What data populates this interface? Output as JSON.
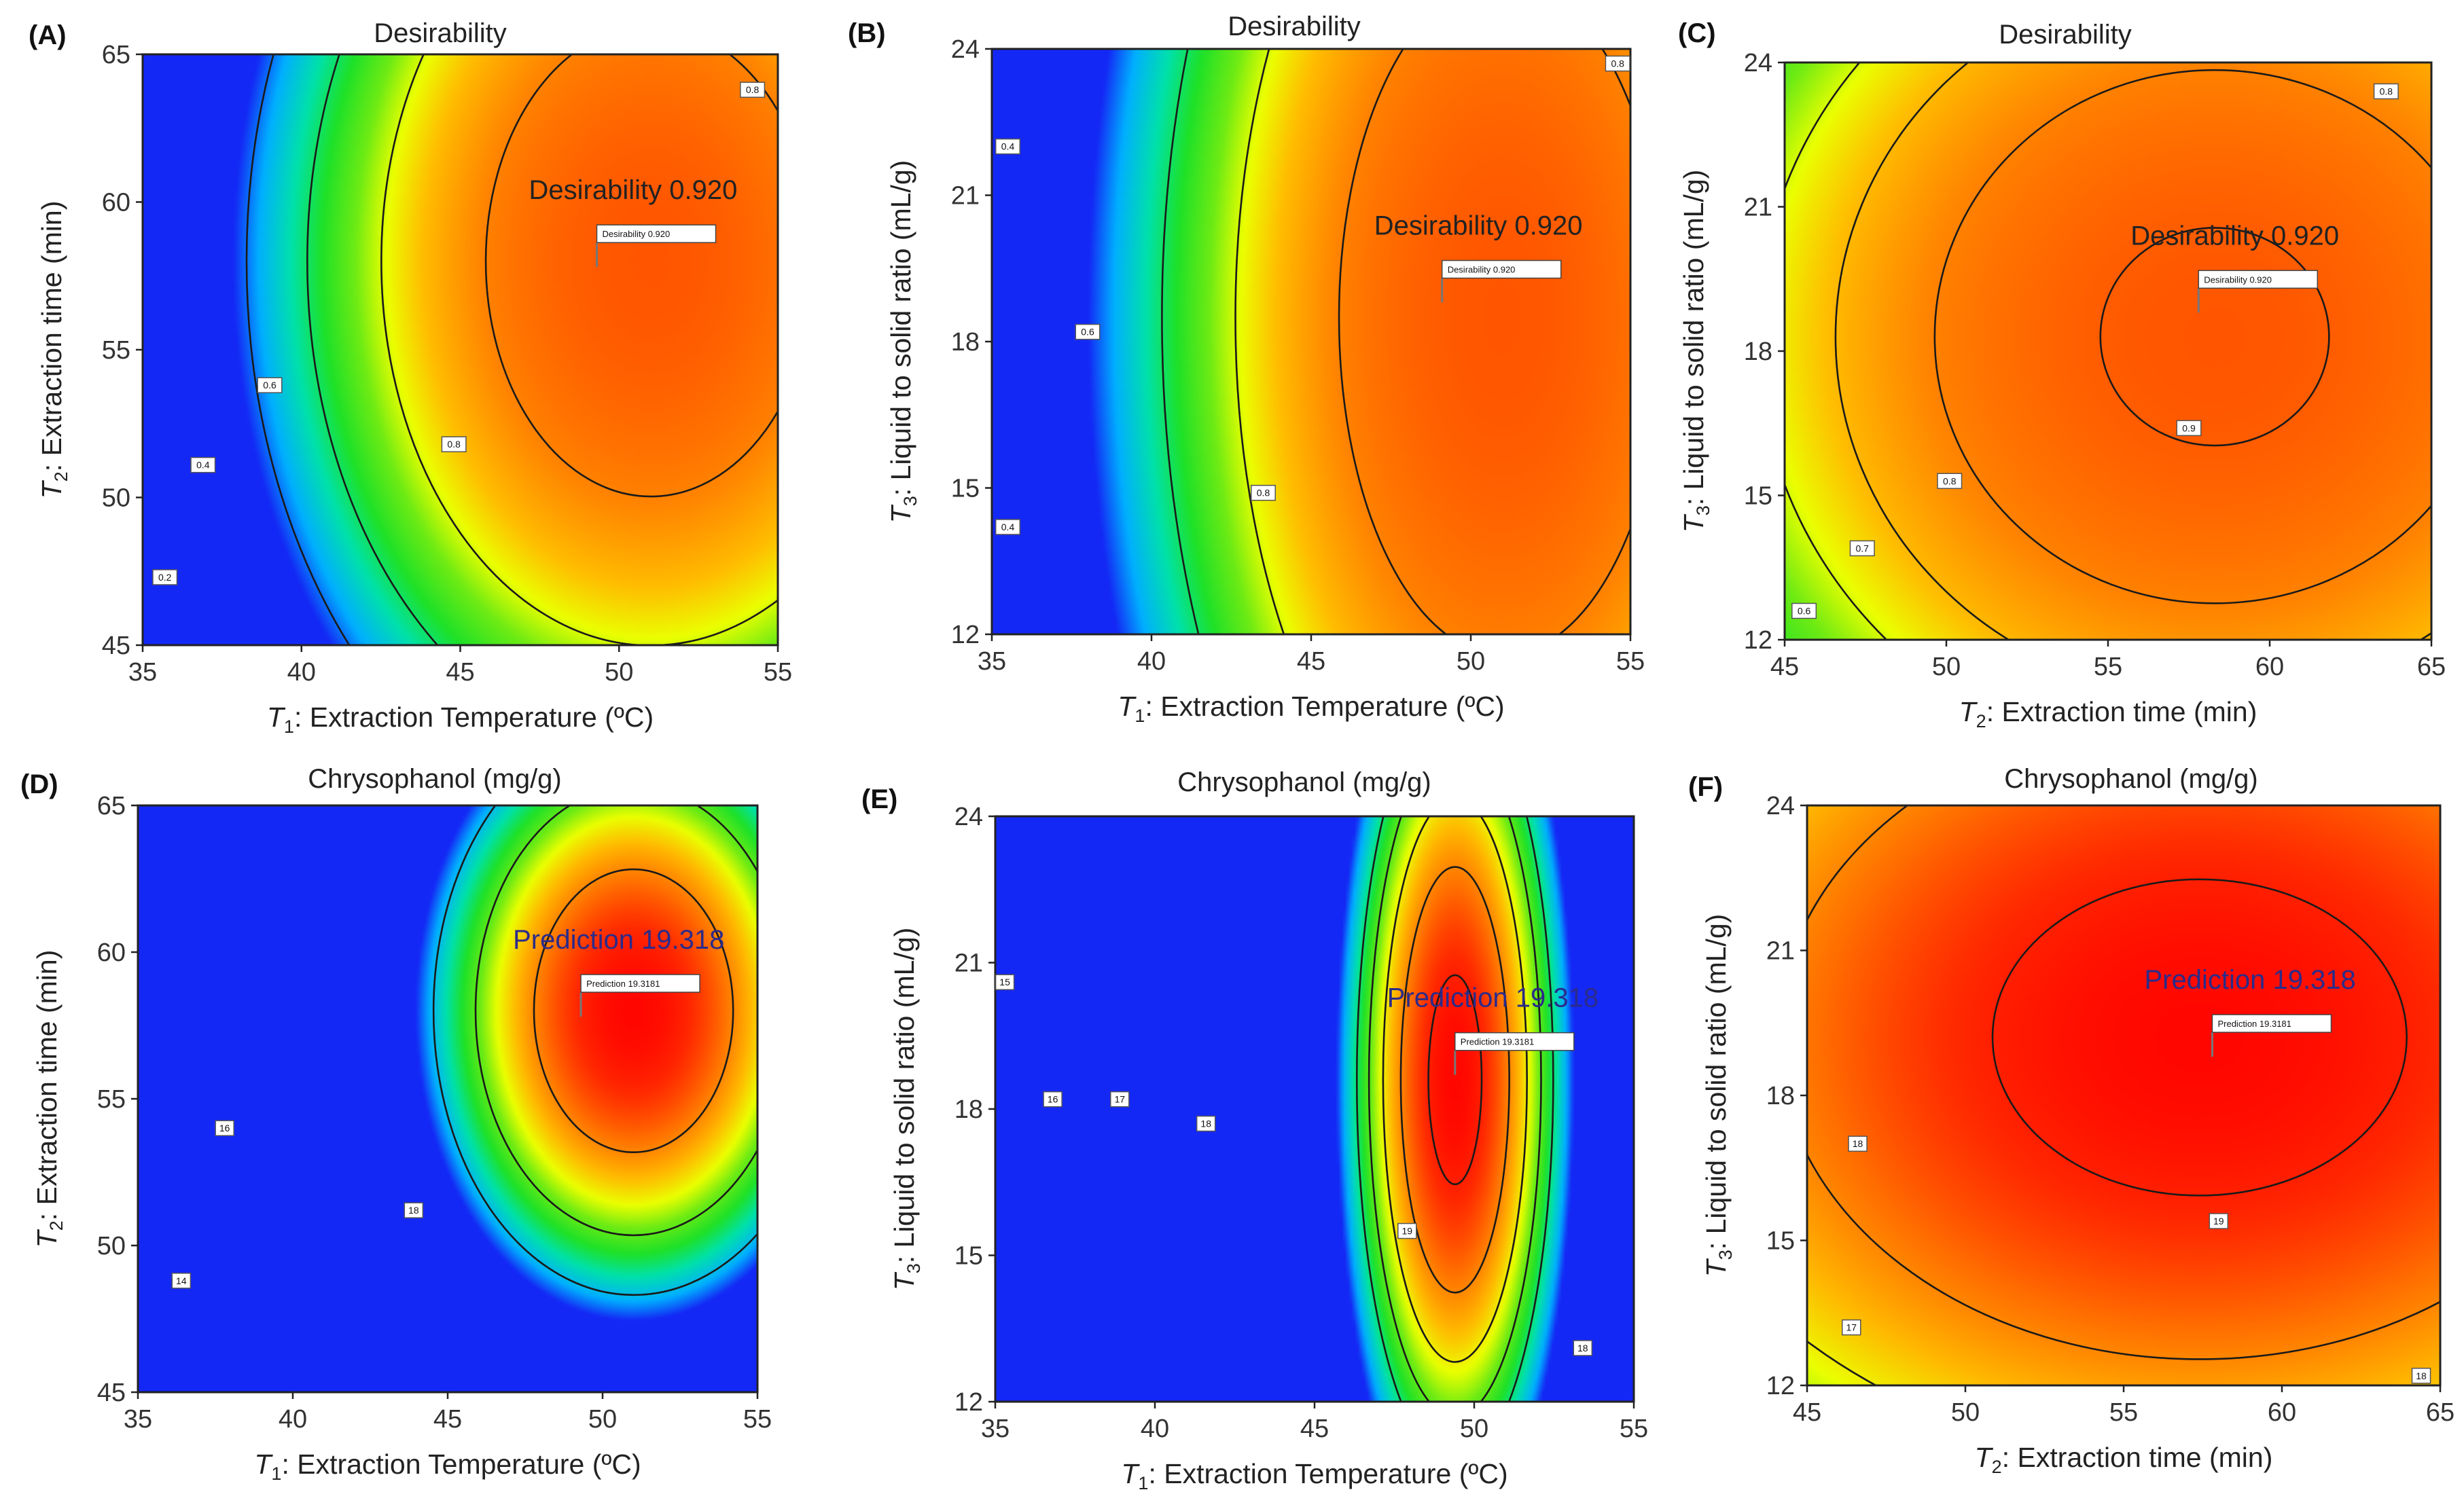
{
  "chart_data": [
    {
      "panel": "(A)",
      "type": "heatmap",
      "title": "Desirability",
      "xlabel": {
        "var": "T",
        "sub": "1",
        "text": ": Extraction Temperature (ºC)"
      },
      "ylabel": {
        "var": "T",
        "sub": "2",
        "text": ": Extraction time (min)"
      },
      "xlim": [
        35,
        55
      ],
      "ylim": [
        45,
        65
      ],
      "xticks": [
        "35",
        "40",
        "45",
        "50",
        "55"
      ],
      "yticks": [
        "45",
        "50",
        "55",
        "60",
        "65"
      ],
      "model": {
        "x0": 51,
        "y0": 58,
        "sx": 15,
        "sy": 23,
        "peak": 0.92
      },
      "levels": [
        0.2,
        0.4,
        0.6,
        0.8
      ],
      "contour_labels": [
        {
          "text": "0.2",
          "x": 35.7,
          "y": 47.3
        },
        {
          "text": "0.4",
          "x": 36.9,
          "y": 51.1
        },
        {
          "text": "0.6",
          "x": 39.0,
          "y": 53.8
        },
        {
          "text": "0.8",
          "x": 44.8,
          "y": 51.8
        },
        {
          "text": "0.8",
          "x": 54.2,
          "y": 63.8
        }
      ],
      "annotation": {
        "label": "Desirability 0.920",
        "box": "Desirability  0.920",
        "x": 49.3,
        "y": 57.8,
        "color": "#222222"
      },
      "colormap": "rainbow"
    },
    {
      "panel": "(B)",
      "type": "heatmap",
      "title": "Desirability",
      "xlabel": {
        "var": "T",
        "sub": "1",
        "text": ": Extraction Temperature (ºC)"
      },
      "ylabel": {
        "var": "T",
        "sub": "3",
        "text": ": Liquid to solid ratio (mL/g)"
      },
      "xlim": [
        35,
        55
      ],
      "ylim": [
        12,
        24
      ],
      "xticks": [
        "35",
        "40",
        "45",
        "50",
        "55"
      ],
      "yticks": [
        "12",
        "15",
        "18",
        "21",
        "24"
      ],
      "model": {
        "x0": 51,
        "y0": 18.5,
        "sx": 14.8,
        "sy": 20,
        "peak": 0.92
      },
      "levels": [
        0.4,
        0.6,
        0.8
      ],
      "contour_labels": [
        {
          "text": "0.4",
          "x": 35.5,
          "y": 22.0
        },
        {
          "text": "0.4",
          "x": 35.5,
          "y": 14.2
        },
        {
          "text": "0.6",
          "x": 38.0,
          "y": 18.2
        },
        {
          "text": "0.8",
          "x": 43.5,
          "y": 14.9
        },
        {
          "text": "0.8",
          "x": 54.6,
          "y": 23.7
        }
      ],
      "annotation": {
        "label": "Desirability 0.920",
        "box": "Desirability  0.920",
        "x": 49.1,
        "y": 18.8,
        "color": "#222222"
      },
      "colormap": "rainbow"
    },
    {
      "panel": "(C)",
      "type": "heatmap",
      "title": "Desirability",
      "xlabel": {
        "var": "T",
        "sub": "2",
        "text": ": Extraction time (min)"
      },
      "ylabel": {
        "var": "T",
        "sub": "3",
        "text": ": Liquid to solid ratio (mL/g)"
      },
      "xlim": [
        45,
        65
      ],
      "ylim": [
        12,
        24
      ],
      "xticks": [
        "45",
        "50",
        "55",
        "60",
        "65"
      ],
      "yticks": [
        "12",
        "15",
        "18",
        "21",
        "24"
      ],
      "model": {
        "x0": 58.3,
        "y0": 18.3,
        "sx": 25,
        "sy": 16,
        "peak": 0.92
      },
      "levels": [
        0.6,
        0.7,
        0.8,
        0.9
      ],
      "contour_labels": [
        {
          "text": "0.6",
          "x": 45.6,
          "y": 12.6
        },
        {
          "text": "0.7",
          "x": 47.4,
          "y": 13.9
        },
        {
          "text": "0.8",
          "x": 50.1,
          "y": 15.3
        },
        {
          "text": "0.9",
          "x": 57.5,
          "y": 16.4
        },
        {
          "text": "0.8",
          "x": 63.6,
          "y": 23.4
        }
      ],
      "annotation": {
        "label": "Desirability 0.920",
        "box": "Desirability  0.920",
        "x": 57.8,
        "y": 18.8,
        "color": "#222222"
      },
      "colormap": "rainbow"
    },
    {
      "panel": "(D)",
      "type": "heatmap",
      "title": "Chrysophanol (mg/g)",
      "xlabel": {
        "var": "T",
        "sub": "1",
        "text": ": Extraction Temperature (ºC)"
      },
      "ylabel": {
        "var": "T",
        "sub": "2",
        "text": ": Extraction time (min)"
      },
      "xlim": [
        35,
        55
      ],
      "ylim": [
        45,
        65
      ],
      "xticks": [
        "35",
        "40",
        "45",
        "50",
        "55"
      ],
      "yticks": [
        "45",
        "50",
        "55",
        "60",
        "65"
      ],
      "model": {
        "x0": 51,
        "y0": 58,
        "sx": 2.8,
        "sy": 4.2,
        "peak": 19.318
      },
      "levels": [
        14,
        16,
        18
      ],
      "contour_labels": [
        {
          "text": "14",
          "x": 36.4,
          "y": 48.8
        },
        {
          "text": "16",
          "x": 37.8,
          "y": 54.0
        },
        {
          "text": "18",
          "x": 43.9,
          "y": 51.2
        }
      ],
      "annotation": {
        "label": "Prediction 19.318",
        "box": "Prediction  19.3181",
        "x": 49.3,
        "y": 57.8,
        "color": "#2b2b8a"
      },
      "colormap": "rainbow-red"
    },
    {
      "panel": "(E)",
      "type": "heatmap",
      "title": "Chrysophanol (mg/g)",
      "xlabel": {
        "var": "T",
        "sub": "1",
        "text": ": Extraction Temperature (ºC)"
      },
      "ylabel": {
        "var": "T",
        "sub": "3",
        "text": ": Liquid to solid ratio (mL/g)"
      },
      "xlim": [
        35,
        55
      ],
      "ylim": [
        12,
        24
      ],
      "xticks": [
        "35",
        "40",
        "45",
        "50",
        "55"
      ],
      "yticks": [
        "12",
        "15",
        "18",
        "21",
        "24"
      ],
      "model": {
        "x0": 49.4,
        "y0": 18.6,
        "sx": 1.48,
        "sy": 3.8,
        "peak": 19.318
      },
      "levels": [
        15,
        16,
        17,
        18,
        19
      ],
      "contour_labels": [
        {
          "text": "15",
          "x": 35.3,
          "y": 20.6
        },
        {
          "text": "16",
          "x": 36.8,
          "y": 18.2
        },
        {
          "text": "17",
          "x": 38.9,
          "y": 18.2
        },
        {
          "text": "18",
          "x": 41.6,
          "y": 17.7
        },
        {
          "text": "19",
          "x": 47.9,
          "y": 15.5
        },
        {
          "text": "18",
          "x": 53.4,
          "y": 13.1
        }
      ],
      "annotation": {
        "label": "Prediction 19.318",
        "box": "Prediction  19.3181",
        "x": 49.4,
        "y": 18.7,
        "color": "#2b2b8a"
      },
      "colormap": "rainbow-red"
    },
    {
      "panel": "(F)",
      "type": "heatmap",
      "title": "Chrysophanol (mg/g)",
      "xlabel": {
        "var": "T",
        "sub": "2",
        "text": ": Extraction time (min)"
      },
      "ylabel": {
        "var": "T",
        "sub": "3",
        "text": ": Liquid to solid ratio (mL/g)"
      },
      "xlim": [
        45,
        65
      ],
      "ylim": [
        12,
        24
      ],
      "xticks": [
        "45",
        "50",
        "55",
        "60",
        "65"
      ],
      "yticks": [
        "12",
        "15",
        "18",
        "21",
        "24"
      ],
      "model": {
        "x0": 57.4,
        "y0": 19.2,
        "sx": 11.6,
        "sy": 5.8,
        "peak": 19.318
      },
      "levels": [
        17,
        18,
        19
      ],
      "contour_labels": [
        {
          "text": "17",
          "x": 46.4,
          "y": 13.2
        },
        {
          "text": "18",
          "x": 46.6,
          "y": 17.0
        },
        {
          "text": "19",
          "x": 58.0,
          "y": 15.4
        },
        {
          "text": "18",
          "x": 64.4,
          "y": 12.2
        }
      ],
      "annotation": {
        "label": "Prediction 19.318",
        "box": "Prediction  19.3181",
        "x": 57.8,
        "y": 18.8,
        "color": "#2b2b8a"
      },
      "colormap": "rainbow-red"
    }
  ]
}
